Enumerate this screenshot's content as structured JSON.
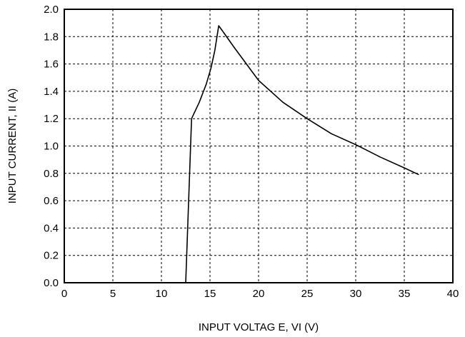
{
  "chart_data": {
    "type": "line",
    "xlabel": "INPUT VOLTAG E, VI (V)",
    "ylabel": "INPUT CURRENT, II (A)",
    "xlim": [
      0,
      40
    ],
    "ylim": [
      0,
      2.0
    ],
    "x_ticks": [
      0,
      5,
      10,
      15,
      20,
      25,
      30,
      35,
      40
    ],
    "x_tick_labels": [
      "0",
      "5",
      "10",
      "15",
      "20",
      "25",
      "30",
      "35",
      "40"
    ],
    "y_ticks": [
      0,
      0.2,
      0.4,
      0.6,
      0.8,
      1.0,
      1.2,
      1.4,
      1.6,
      1.8,
      2.0
    ],
    "y_tick_labels": [
      "0.0",
      "0.2",
      "0.4",
      "0.6",
      "0.8",
      "1.0",
      "1.2",
      "1.4",
      "1.6",
      "1.8",
      "2.0"
    ],
    "grid": true,
    "grid_style": "dashed",
    "line_color": "#000000",
    "series": [
      {
        "x": [
          12.5,
          12.8,
          13.1,
          13.9,
          14.6,
          15.1,
          15.5,
          15.9,
          16.3,
          17.5,
          20.0,
          22.5,
          25.0,
          27.5,
          30.0,
          32.5,
          35.0,
          36.5
        ],
        "y": [
          0.0,
          0.6,
          1.2,
          1.32,
          1.45,
          1.57,
          1.7,
          1.88,
          1.84,
          1.72,
          1.48,
          1.32,
          1.2,
          1.09,
          1.01,
          0.92,
          0.84,
          0.79
        ]
      }
    ]
  }
}
